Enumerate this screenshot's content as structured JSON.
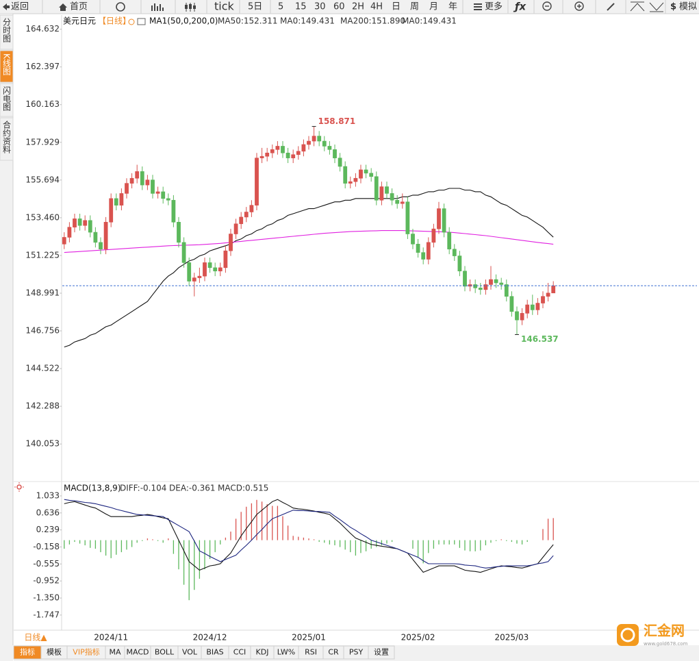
{
  "toolbar": [
    "返回",
    "首页",
    "tick",
    "5日",
    "5",
    "15",
    "30",
    "60",
    "2H",
    "4H",
    "日",
    "周",
    "月",
    "年",
    "更多",
    "模拟"
  ],
  "sidebar": [
    "分时图",
    "K线图",
    "闪电图",
    "合约资料"
  ],
  "period_button": "日线▲",
  "indicator_tabs": [
    "指标",
    "模板",
    "VIP指标",
    "MA",
    "MACD",
    "BOLL",
    "VOL",
    "BIAS",
    "CCI",
    "KDJ",
    "LW%",
    "RSI",
    "CR",
    "PSY",
    "设置"
  ],
  "logo": {
    "name": "汇金网",
    "url": "www.gold678.com"
  },
  "chart_data": [
    {
      "type": "candlestick",
      "symbol": "美元日元",
      "period": "【日线】",
      "indicator": "MA1(50,0,200,0)",
      "extra_legend": [
        {
          "name": "MA0:149.431",
          "color": "#1a237e"
        },
        {
          "name": "MA0:149.431",
          "color": "#f08a24"
        }
      ],
      "up_color": "#d9534f",
      "down_color": "#5cb85c",
      "price_line_color": "#3b6fd1",
      "high_label_color": "#d9534f",
      "low_label_color": "#5cb85c",
      "ylim": [
        137.95,
        165.47
      ],
      "yticks": [
        164.632,
        162.397,
        160.163,
        157.929,
        155.694,
        {
          "value": 153.46,
          "label": "153.460"
        },
        151.225,
        148.991,
        146.756,
        144.522,
        142.288,
        140.053
      ],
      "categories": [
        null,
        null,
        null,
        null,
        null,
        null,
        null,
        null,
        null,
        "2024/11",
        null,
        null,
        null,
        null,
        null,
        null,
        null,
        null,
        null,
        null,
        null,
        null,
        null,
        null,
        null,
        null,
        null,
        null,
        "2024/12",
        null,
        null,
        null,
        null,
        null,
        null,
        null,
        null,
        null,
        null,
        null,
        null,
        null,
        null,
        null,
        null,
        null,
        null,
        "2025/01",
        null,
        null,
        null,
        null,
        null,
        null,
        null,
        null,
        null,
        null,
        null,
        null,
        null,
        null,
        null,
        null,
        null,
        null,
        null,
        null,
        "2025/02",
        null,
        null,
        null,
        null,
        null,
        null,
        null,
        null,
        null,
        null,
        null,
        null,
        null,
        null,
        null,
        null,
        null,
        "2025/03",
        null,
        null,
        null,
        null,
        null,
        null,
        null,
        null
      ],
      "open": [
        151.9,
        152.3,
        152.9,
        153.4,
        153.0,
        153.3,
        152.6,
        152.0,
        151.6,
        153.2,
        154.6,
        154.2,
        154.9,
        155.5,
        155.8,
        156.2,
        155.4,
        155.7,
        154.9,
        155.0,
        154.6,
        154.5,
        153.2,
        152.0,
        150.8,
        149.7,
        149.9,
        150.0,
        150.8,
        150.5,
        150.3,
        150.5,
        151.5,
        152.5,
        153.1,
        153.5,
        153.8,
        154.2,
        157.0,
        157.1,
        157.3,
        157.5,
        157.7,
        157.3,
        157.0,
        157.2,
        157.4,
        157.8,
        158.0,
        158.3,
        158.0,
        157.7,
        157.5,
        157.0,
        156.5,
        155.5,
        155.6,
        155.8,
        156.3,
        156.1,
        155.9,
        154.5,
        155.3,
        154.9,
        154.5,
        154.3,
        154.4,
        152.5,
        151.9,
        151.4,
        151.0,
        152.0,
        152.8,
        154.0,
        152.6,
        151.6,
        151.2,
        150.3,
        149.4,
        149.5,
        149.3,
        149.2,
        149.5,
        149.8,
        149.6,
        149.5,
        148.8,
        147.9,
        147.4,
        147.8,
        148.3,
        148.0,
        148.4,
        148.8,
        149.0
      ],
      "high": [
        152.6,
        153.2,
        153.7,
        153.7,
        153.6,
        153.6,
        152.9,
        152.3,
        153.5,
        154.9,
        154.9,
        155.2,
        155.8,
        156.1,
        156.6,
        156.5,
        156.0,
        156.0,
        155.3,
        155.3,
        154.9,
        154.8,
        153.5,
        152.3,
        151.1,
        150.2,
        150.5,
        151.1,
        151.1,
        150.8,
        150.8,
        151.8,
        152.8,
        153.4,
        153.8,
        154.1,
        154.5,
        157.3,
        157.6,
        157.6,
        157.8,
        158.0,
        158.0,
        157.6,
        157.5,
        157.7,
        158.1,
        158.3,
        158.871,
        158.6,
        158.3,
        158.0,
        157.8,
        157.3,
        156.8,
        155.9,
        156.1,
        156.6,
        156.6,
        156.4,
        156.2,
        155.6,
        155.6,
        155.2,
        154.8,
        154.9,
        154.7,
        152.8,
        152.2,
        151.7,
        152.3,
        153.1,
        154.4,
        154.3,
        152.9,
        151.9,
        151.5,
        150.6,
        149.8,
        149.8,
        149.6,
        149.8,
        150.6,
        150.1,
        149.9,
        149.8,
        149.1,
        148.2,
        148.1,
        148.6,
        148.9,
        148.7,
        149.1,
        149.6,
        149.7
      ],
      "low": [
        151.6,
        152.0,
        152.6,
        152.7,
        152.7,
        152.3,
        151.7,
        151.3,
        151.3,
        152.9,
        153.9,
        153.9,
        154.6,
        155.2,
        155.5,
        155.1,
        155.1,
        154.6,
        154.6,
        154.3,
        154.2,
        152.9,
        151.7,
        150.5,
        149.4,
        148.8,
        149.6,
        149.7,
        150.2,
        150.0,
        150.0,
        150.2,
        151.2,
        152.2,
        152.8,
        153.2,
        153.5,
        153.9,
        156.7,
        156.8,
        157.0,
        157.2,
        157.0,
        156.7,
        156.7,
        156.9,
        157.1,
        157.5,
        157.7,
        157.7,
        157.4,
        157.2,
        156.7,
        156.2,
        155.2,
        155.2,
        155.3,
        155.5,
        155.8,
        155.6,
        154.2,
        154.2,
        154.6,
        154.2,
        154.0,
        154.0,
        152.2,
        151.6,
        151.1,
        150.7,
        150.7,
        151.7,
        152.5,
        152.3,
        151.3,
        150.9,
        150.0,
        149.1,
        149.1,
        149.0,
        148.9,
        148.9,
        149.2,
        149.3,
        149.2,
        148.5,
        147.6,
        146.537,
        147.1,
        147.5,
        147.7,
        147.7,
        148.1,
        148.5,
        149.0
      ],
      "close": [
        152.3,
        152.9,
        153.4,
        153.0,
        153.3,
        152.6,
        152.0,
        151.6,
        153.2,
        154.6,
        154.2,
        154.9,
        155.5,
        155.8,
        156.2,
        155.4,
        155.7,
        154.9,
        155.0,
        154.6,
        154.5,
        153.2,
        152.0,
        150.8,
        149.7,
        149.9,
        150.0,
        150.8,
        150.5,
        150.3,
        150.5,
        151.5,
        152.5,
        153.1,
        153.5,
        153.8,
        154.2,
        157.0,
        157.1,
        157.3,
        157.5,
        157.7,
        157.3,
        157.0,
        157.2,
        157.4,
        157.8,
        158.0,
        158.3,
        158.0,
        157.7,
        157.5,
        157.0,
        156.5,
        155.5,
        155.6,
        155.8,
        156.3,
        156.1,
        155.9,
        154.5,
        155.3,
        154.9,
        154.5,
        154.3,
        154.4,
        152.5,
        151.9,
        151.4,
        151.0,
        152.0,
        152.8,
        154.0,
        152.6,
        151.6,
        151.2,
        150.3,
        149.4,
        149.5,
        149.3,
        149.2,
        149.5,
        149.8,
        149.6,
        149.5,
        148.8,
        147.9,
        147.4,
        147.8,
        148.3,
        148.0,
        148.4,
        148.8,
        149.0,
        149.431
      ],
      "series": [
        {
          "name": "MA50:152.311",
          "color": "#111111",
          "values": [
            145.8,
            145.9,
            146.1,
            146.2,
            146.3,
            146.5,
            146.6,
            146.8,
            147.0,
            147.1,
            147.3,
            147.5,
            147.7,
            147.9,
            148.1,
            148.3,
            148.5,
            148.9,
            149.3,
            149.7,
            150.0,
            150.2,
            150.5,
            150.7,
            150.9,
            151.0,
            151.2,
            151.3,
            151.5,
            151.6,
            151.7,
            151.8,
            151.9,
            152.1,
            152.2,
            152.4,
            152.5,
            152.7,
            152.8,
            153.0,
            153.1,
            153.3,
            153.4,
            153.6,
            153.7,
            153.8,
            153.9,
            154.0,
            154.0,
            154.1,
            154.2,
            154.3,
            154.4,
            154.4,
            154.5,
            154.5,
            154.6,
            154.6,
            154.6,
            154.6,
            154.6,
            154.6,
            154.6,
            154.6,
            154.6,
            154.7,
            154.7,
            154.8,
            154.8,
            154.9,
            155.0,
            155.0,
            155.1,
            155.1,
            155.2,
            155.2,
            155.2,
            155.1,
            155.1,
            155.0,
            155.0,
            154.8,
            154.7,
            154.5,
            154.3,
            154.2,
            154.0,
            153.8,
            153.6,
            153.5,
            153.3,
            153.1,
            152.9,
            152.6,
            152.311
          ]
        },
        {
          "name": "MA200:151.890",
          "color": "#e020e0",
          "values": [
            151.4,
            151.42,
            151.44,
            151.46,
            151.48,
            151.5,
            151.52,
            151.54,
            151.56,
            151.58,
            151.6,
            151.62,
            151.64,
            151.66,
            151.68,
            151.7,
            151.72,
            151.74,
            151.76,
            151.78,
            151.8,
            151.81,
            151.82,
            151.83,
            151.84,
            151.85,
            151.86,
            151.88,
            151.9,
            151.92,
            151.94,
            151.97,
            152.0,
            152.03,
            152.06,
            152.09,
            152.12,
            152.15,
            152.18,
            152.21,
            152.24,
            152.27,
            152.3,
            152.33,
            152.36,
            152.39,
            152.42,
            152.45,
            152.48,
            152.51,
            152.54,
            152.56,
            152.58,
            152.6,
            152.62,
            152.64,
            152.65,
            152.66,
            152.67,
            152.68,
            152.69,
            152.7,
            152.7,
            152.7,
            152.7,
            152.7,
            152.69,
            152.68,
            152.67,
            152.66,
            152.65,
            152.64,
            152.63,
            152.62,
            152.6,
            152.58,
            152.55,
            152.52,
            152.49,
            152.46,
            152.43,
            152.4,
            152.36,
            152.32,
            152.28,
            152.24,
            152.2,
            152.16,
            152.12,
            152.08,
            152.04,
            152.0,
            151.96,
            151.93,
            151.89
          ]
        }
      ]
    },
    {
      "type": "macd",
      "title": "MACD(13,8,9)",
      "ylim": [
        -2.1,
        1.32
      ],
      "yticks": [
        1.033,
        0.636,
        0.239,
        -0.158,
        -0.555,
        -0.952,
        {
          "value": -1.35,
          "label": "-1.350"
        },
        -1.747
      ],
      "series": [
        {
          "name": "DIFF:-0.104",
          "color": "#111111",
          "values": [
            0.85,
            0.88,
            0.9,
            0.86,
            0.82,
            0.78,
            0.75,
            0.68,
            0.61,
            0.55,
            0.55,
            0.55,
            0.55,
            0.55,
            0.57,
            0.58,
            0.6,
            0.58,
            0.55,
            0.52,
            0.5,
            0.25,
            0.0,
            -0.25,
            -0.5,
            -0.6,
            -0.7,
            -0.65,
            -0.6,
            -0.58,
            -0.55,
            -0.42,
            -0.3,
            -0.1,
            0.1,
            0.27,
            0.43,
            0.6,
            0.7,
            0.8,
            0.9,
            0.95,
            0.88,
            0.82,
            0.75,
            0.73,
            0.72,
            0.7,
            0.68,
            0.65,
            0.63,
            0.6,
            0.5,
            0.4,
            0.28,
            0.16,
            0.05,
            0.0,
            -0.05,
            -0.1,
            -0.12,
            -0.14,
            -0.16,
            -0.18,
            -0.2,
            -0.25,
            -0.3,
            -0.45,
            -0.6,
            -0.75,
            -0.7,
            -0.65,
            -0.6,
            -0.6,
            -0.6,
            -0.6,
            -0.65,
            -0.7,
            -0.72,
            -0.73,
            -0.75,
            -0.71,
            -0.67,
            -0.63,
            -0.6,
            -0.61,
            -0.62,
            -0.64,
            -0.65,
            -0.62,
            -0.58,
            -0.55,
            -0.4,
            -0.25,
            -0.104
          ]
        },
        {
          "name": "DEA:-0.361",
          "color": "#1a237e",
          "values": [
            0.95,
            0.93,
            0.92,
            0.9,
            0.88,
            0.87,
            0.85,
            0.82,
            0.79,
            0.76,
            0.72,
            0.69,
            0.66,
            0.63,
            0.6,
            0.59,
            0.58,
            0.57,
            0.56,
            0.55,
            0.48,
            0.41,
            0.34,
            0.27,
            0.2,
            -0.02,
            -0.25,
            -0.31,
            -0.38,
            -0.44,
            -0.5,
            -0.45,
            -0.4,
            -0.35,
            -0.23,
            -0.12,
            0.0,
            0.13,
            0.25,
            0.38,
            0.5,
            0.55,
            0.6,
            0.65,
            0.7,
            0.69,
            0.69,
            0.68,
            0.67,
            0.67,
            0.66,
            0.65,
            0.56,
            0.48,
            0.39,
            0.3,
            0.23,
            0.15,
            0.08,
            0.0,
            -0.04,
            -0.08,
            -0.12,
            -0.16,
            -0.2,
            -0.25,
            -0.3,
            -0.35,
            -0.4,
            -0.48,
            -0.55,
            -0.55,
            -0.55,
            -0.55,
            -0.55,
            -0.55,
            -0.56,
            -0.58,
            -0.59,
            -0.6,
            -0.63,
            -0.65,
            -0.64,
            -0.62,
            -0.61,
            -0.6,
            -0.6,
            -0.6,
            -0.6,
            -0.6,
            -0.58,
            -0.55,
            -0.53,
            -0.5,
            -0.361
          ]
        }
      ],
      "bars": {
        "name": "MACD:0.515",
        "color": "#e020e0",
        "up_color": "#d9534f",
        "down_color": "#5cb85c",
        "values": [
          -0.2,
          -0.1,
          -0.04,
          -0.08,
          -0.12,
          -0.18,
          -0.2,
          -0.28,
          -0.36,
          -0.42,
          -0.34,
          -0.28,
          -0.22,
          -0.16,
          -0.06,
          -0.02,
          0.04,
          0.02,
          -0.02,
          -0.06,
          0.04,
          -0.32,
          -0.68,
          -1.04,
          -1.4,
          -1.16,
          -0.9,
          -0.68,
          -0.44,
          -0.28,
          -0.1,
          0.06,
          0.2,
          0.5,
          0.66,
          0.78,
          0.86,
          0.94,
          0.9,
          0.84,
          0.8,
          0.8,
          0.56,
          0.34,
          0.1,
          0.08,
          0.06,
          0.04,
          0.02,
          -0.04,
          -0.06,
          -0.1,
          -0.12,
          -0.16,
          -0.22,
          -0.28,
          -0.36,
          -0.3,
          -0.26,
          -0.2,
          -0.16,
          -0.12,
          -0.08,
          -0.04,
          0.0,
          0.0,
          0.0,
          -0.2,
          -0.4,
          -0.54,
          -0.3,
          -0.2,
          -0.1,
          -0.1,
          -0.1,
          -0.1,
          -0.18,
          -0.24,
          -0.26,
          -0.26,
          -0.24,
          -0.12,
          -0.06,
          -0.02,
          0.02,
          -0.02,
          -0.04,
          -0.08,
          -0.1,
          -0.04,
          0.0,
          0.0,
          0.26,
          0.5,
          0.515
        ]
      }
    }
  ]
}
